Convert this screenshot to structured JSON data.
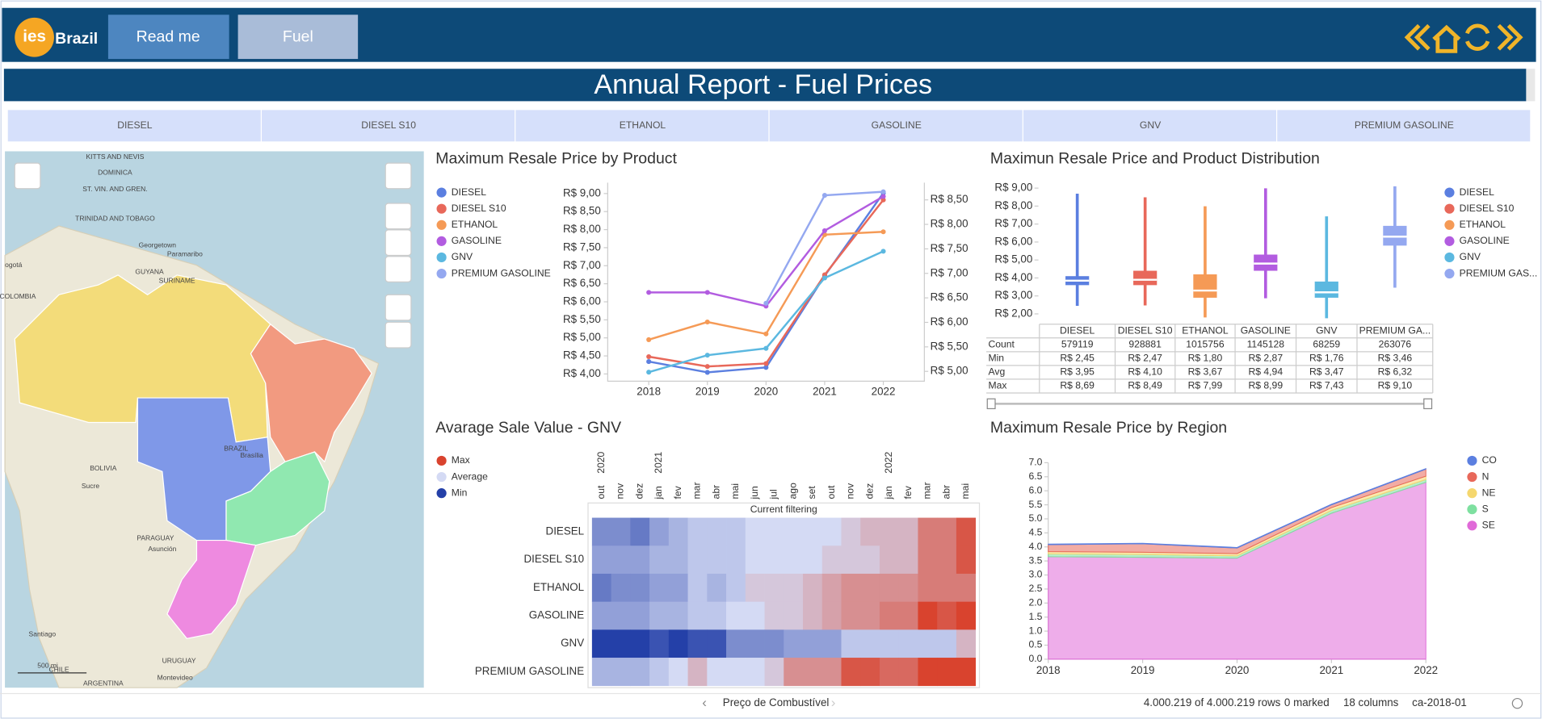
{
  "header": {
    "logo": "ies",
    "logo_sub": "Brazil",
    "tabs": [
      "Read me",
      "Fuel"
    ],
    "title": "Annual Report - Fuel Prices"
  },
  "filters": [
    "DIESEL",
    "DIESEL S10",
    "ETHANOL",
    "GASOLINE",
    "GNV",
    "PREMIUM GASOLINE"
  ],
  "map": {
    "labels": [
      "KITTS AND NEVIS",
      "DOMINICA",
      "ST. VIN. AND GREN.",
      "TRINIDAD AND TOBAGO",
      "Georgetown",
      "Paramaribo",
      "GUYANA",
      "SURINAME",
      "ogotá",
      "COLOMBIA",
      "BOLIVIA",
      "Sucre",
      "PARAGUAY",
      "Asunción",
      "Santiago",
      "URUGUAY",
      "Montevideo",
      "CHILE",
      "ARGENTINA",
      "BRAZIL",
      "Brasília",
      "500 mi"
    ]
  },
  "chart_data": [
    {
      "type": "line",
      "title": "Maximum Resale Price by Product",
      "x": [
        2018,
        2019,
        2020,
        2021,
        2022
      ],
      "xlim": [
        2017.3,
        2022.7
      ],
      "xticks": [
        2018,
        2019,
        2020,
        2021,
        2022
      ],
      "ylim": [
        3.8,
        9.3
      ],
      "yticks": [
        {
          "value": 4,
          "label": "R$ 4,00"
        },
        {
          "value": 4.5,
          "label": "R$ 4,50"
        },
        {
          "value": 5,
          "label": "R$ 5,00"
        },
        {
          "value": 5.5,
          "label": "R$ 5,50"
        },
        {
          "value": 6,
          "label": "R$ 6,00"
        },
        {
          "value": 6.5,
          "label": "R$ 6,50"
        },
        {
          "value": 7,
          "label": "R$ 7,00"
        },
        {
          "value": 7.5,
          "label": "R$ 7,50"
        },
        {
          "value": 8,
          "label": "R$ 8,00"
        },
        {
          "value": 8.5,
          "label": "R$ 8,50"
        },
        {
          "value": 9,
          "label": "R$ 9,00"
        }
      ],
      "y2lim": [
        4.8,
        8.85
      ],
      "y2ticks": [
        {
          "value": 5,
          "label": "R$ 5,00"
        },
        {
          "value": 5.5,
          "label": "R$ 5,50"
        },
        {
          "value": 6,
          "label": "R$ 6,00"
        },
        {
          "value": 6.5,
          "label": "R$ 6,50"
        },
        {
          "value": 7,
          "label": "R$ 7,00"
        },
        {
          "value": 7.5,
          "label": "R$ 7,50"
        },
        {
          "value": 8,
          "label": "R$ 8,00"
        },
        {
          "value": 8.5,
          "label": "R$ 8,50"
        }
      ],
      "series": [
        {
          "name": "DIESEL",
          "color": "#5b7fe0",
          "axis": "y2",
          "values": [
            5.2,
            4.98,
            5.08,
            6.95,
            8.64
          ]
        },
        {
          "name": "DIESEL S10",
          "color": "#e8685a",
          "axis": "y2",
          "values": [
            5.3,
            5.1,
            5.16,
            6.97,
            8.5
          ]
        },
        {
          "name": "ETHANOL",
          "color": "#f59a56",
          "values": [
            4.95,
            5.44,
            5.11,
            7.86,
            7.94
          ]
        },
        {
          "name": "GASOLINE",
          "color": "#b25ce0",
          "values": [
            6.26,
            6.26,
            5.88,
            7.97,
            8.92
          ]
        },
        {
          "name": "GNV",
          "color": "#5bb8e0",
          "values": [
            4.05,
            4.52,
            4.71,
            6.66,
            7.4
          ]
        },
        {
          "name": "PREMIUM GASOLINE",
          "color": "#94a8f0",
          "values": [
            null,
            null,
            5.96,
            8.95,
            9.05
          ]
        }
      ]
    },
    {
      "type": "box",
      "title": "Maximun Resale Price and Product Distribution",
      "categories": [
        "DIESEL",
        "DIESEL S10",
        "ETHANOL",
        "GASOLINE",
        "GNV",
        "PREMIUM GAS..."
      ],
      "colors": [
        "#5b7fe0",
        "#e8685a",
        "#f59a56",
        "#b25ce0",
        "#5bb8e0",
        "#94a8f0"
      ],
      "ylim": [
        1.7,
        9.3
      ],
      "yticks": [
        {
          "value": 2,
          "label": "R$ 2,00"
        },
        {
          "value": 3,
          "label": "R$ 3,00"
        },
        {
          "value": 4,
          "label": "R$ 4,00"
        },
        {
          "value": 5,
          "label": "R$ 5,00"
        },
        {
          "value": 6,
          "label": "R$ 6,00"
        },
        {
          "value": 7,
          "label": "R$ 7,00"
        },
        {
          "value": 8,
          "label": "R$ 8,00"
        },
        {
          "value": 9,
          "label": "R$ 9,00"
        }
      ],
      "min": [
        2.45,
        2.47,
        1.8,
        2.87,
        1.76,
        3.46
      ],
      "q1": [
        3.6,
        3.6,
        2.9,
        4.4,
        2.9,
        5.8
      ],
      "median": [
        3.85,
        3.9,
        3.3,
        4.8,
        3.2,
        6.3
      ],
      "q3": [
        4.1,
        4.4,
        4.2,
        5.3,
        3.8,
        6.9
      ],
      "max": [
        8.69,
        8.49,
        7.99,
        8.99,
        7.43,
        9.1
      ],
      "table": {
        "columns": [
          "DIESEL",
          "DIESEL S10",
          "ETHANOL",
          "GASOLINE",
          "GNV",
          "PREMIUM GA..."
        ],
        "rows": [
          [
            "Count",
            "579119",
            "928881",
            "1015756",
            "1145128",
            "68259",
            "263076"
          ],
          [
            "Min",
            "R$ 2,45",
            "R$ 2,47",
            "R$ 1,80",
            "R$ 2,87",
            "R$ 1,76",
            "R$ 3,46"
          ],
          [
            "Avg",
            "R$ 3,95",
            "R$ 4,10",
            "R$ 3,67",
            "R$ 4,94",
            "R$ 3,47",
            "R$ 6,32"
          ],
          [
            "Max",
            "R$ 8,69",
            "R$ 8,49",
            "R$ 7,99",
            "R$ 8,99",
            "R$ 7,43",
            "R$ 9,10"
          ]
        ]
      }
    },
    {
      "type": "heatmap",
      "title": "Avarage Sale Value - GNV",
      "subtitle": "Current filtering",
      "legend": [
        {
          "name": "Max",
          "color": "#d9432e"
        },
        {
          "name": "Average",
          "color": "#d4daf4"
        },
        {
          "name": "Min",
          "color": "#2440a8"
        }
      ],
      "columns": [
        "out",
        "nov",
        "dez",
        "jan",
        "fev",
        "mar",
        "abr",
        "mai",
        "jun",
        "jul",
        "ago",
        "set",
        "out",
        "nov",
        "dez",
        "jan",
        "fev",
        "mar",
        "abr",
        "mai"
      ],
      "years": [
        2020,
        null,
        null,
        2021,
        null,
        null,
        null,
        null,
        null,
        null,
        null,
        null,
        null,
        null,
        null,
        2022,
        null,
        null,
        null,
        null
      ],
      "rows": [
        "DIESEL",
        "DIESEL S10",
        "ETHANOL",
        "GASOLINE",
        "GNV",
        "PREMIUM GASOLINE"
      ],
      "values": [
        [
          3,
          3,
          2.5,
          3.5,
          4,
          4.5,
          4.5,
          4.5,
          5,
          5,
          5,
          5,
          5,
          5.5,
          6,
          6,
          6,
          7.5,
          7.5,
          8.5
        ],
        [
          3.5,
          3.5,
          3.5,
          4,
          4,
          4.5,
          4.5,
          4.5,
          5,
          5,
          5,
          5,
          5.5,
          5.5,
          5.5,
          6,
          6,
          7.5,
          7.5,
          8.5
        ],
        [
          2.5,
          3,
          3,
          3.5,
          3.5,
          4.5,
          4,
          4.5,
          5.5,
          5.5,
          5.5,
          6,
          6.5,
          7,
          7,
          7,
          7,
          7.5,
          7.5,
          7.5
        ],
        [
          3.5,
          3.5,
          3.5,
          4,
          4,
          4.5,
          4.5,
          5,
          5,
          5.5,
          5.5,
          6,
          6.5,
          7,
          7,
          7.5,
          7.5,
          9,
          8.5,
          9
        ],
        [
          1,
          1,
          1,
          1.5,
          1,
          1.5,
          1.5,
          3,
          3,
          3,
          3.5,
          3.5,
          3.5,
          4.5,
          4.5,
          4.5,
          4.5,
          4.5,
          4.5,
          6
        ],
        [
          4,
          4,
          4,
          4.5,
          5,
          6,
          5,
          5,
          5,
          5.5,
          7,
          7,
          7,
          8.5,
          8.5,
          8,
          8,
          9,
          9,
          9
        ]
      ]
    },
    {
      "type": "area",
      "title": "Maximum Resale Price by Region",
      "x": [
        2018,
        2019,
        2020,
        2021,
        2022
      ],
      "xlim": [
        2018,
        2022
      ],
      "xticks": [
        2018,
        2019,
        2020,
        2021,
        2022
      ],
      "stacked": true,
      "ylim": [
        0,
        7
      ],
      "yticks": [
        {
          "value": 0,
          "label": "0.0"
        },
        {
          "value": 0.5,
          "label": "0.5"
        },
        {
          "value": 1,
          "label": "1.0"
        },
        {
          "value": 1.5,
          "label": "1.5"
        },
        {
          "value": 2,
          "label": "2.0"
        },
        {
          "value": 2.5,
          "label": "2.5"
        },
        {
          "value": 3,
          "label": "3.0"
        },
        {
          "value": 3.5,
          "label": "3.5"
        },
        {
          "value": 4,
          "label": "4.0"
        },
        {
          "value": 4.5,
          "label": "4.5"
        },
        {
          "value": 5,
          "label": "5.0"
        },
        {
          "value": 5.5,
          "label": "5.5"
        },
        {
          "value": 6,
          "label": "6.0"
        },
        {
          "value": 6.5,
          "label": "6.5"
        },
        {
          "value": 7,
          "label": "7.0"
        }
      ],
      "series": [
        {
          "name": "CO",
          "color": "#5b7fe0",
          "values": [
            0.02,
            0.02,
            0.02,
            0.02,
            0.02
          ]
        },
        {
          "name": "N",
          "color": "#e8685a",
          "values": [
            0.25,
            0.3,
            0.2,
            0.1,
            0.25
          ]
        },
        {
          "name": "NE",
          "color": "#f5d76e",
          "values": [
            0.08,
            0.08,
            0.08,
            0.1,
            0.12
          ]
        },
        {
          "name": "S",
          "color": "#7ee0a0",
          "values": [
            0.1,
            0.1,
            0.08,
            0.1,
            0.1
          ]
        },
        {
          "name": "SE",
          "color": "#e06ad8",
          "values": [
            3.65,
            3.63,
            3.6,
            5.2,
            6.3
          ]
        }
      ]
    }
  ],
  "footer": {
    "nav_label": "Preço de Combustível",
    "rows": "4.000.219 of 4.000.219 rows",
    "marked": "0 marked",
    "columns": "18 columns",
    "sheet": "ca-2018-01"
  }
}
